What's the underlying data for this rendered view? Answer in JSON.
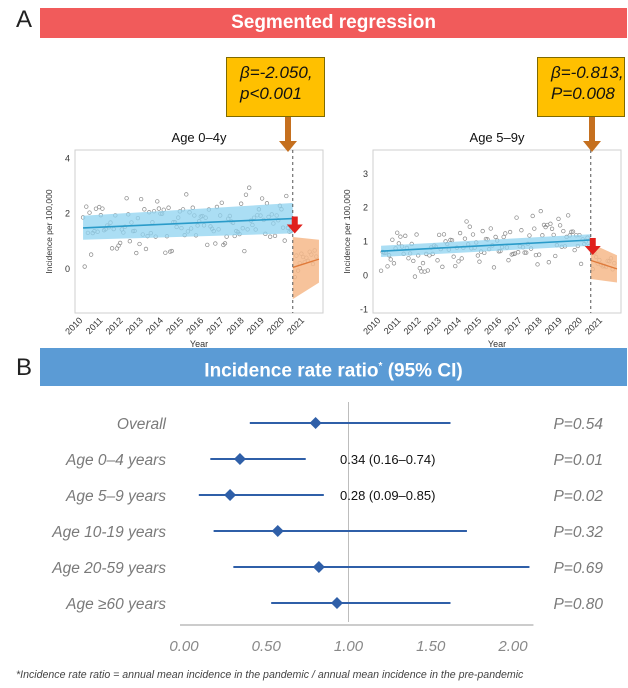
{
  "panel_a": {
    "letter": "A",
    "banner": "Segmented regression",
    "banner_color": "#f15b5b"
  },
  "panel_b": {
    "letter": "B",
    "banner_main": "Incidence rate ratio",
    "banner_sup": "*",
    "banner_tail": " (95% CI)",
    "banner_color": "#5b9bd5"
  },
  "callouts": [
    {
      "line1": "β=-2.050,",
      "line2": "p<0.001"
    },
    {
      "line1": "β=-0.813,",
      "line2": "P=0.008"
    }
  ],
  "footnote": "*Incidence rate ratio = annual mean incidence in the pandemic / annual mean incidence in the pre-pandemic",
  "colors": {
    "pre_band": "#8fd3f0",
    "pre_line": "#2a9bc9",
    "post_band": "#f6b98a",
    "post_line": "#e07a3a",
    "arrow_down": "#e0201c",
    "arrow_callout": "#c5701f",
    "forest": "#2f5fa8",
    "points": "#888888"
  },
  "chart_data": [
    {
      "type": "scatter",
      "title": "Age 0–4y",
      "xlabel": "Year",
      "ylabel": "Incidence per 100,000",
      "x_ticks": [
        "2010",
        "2011",
        "2012",
        "2013",
        "2014",
        "2015",
        "2016",
        "2017",
        "2018",
        "2019",
        "2020",
        "2021"
      ],
      "y_ticks": [
        "0",
        "2",
        "4"
      ],
      "xlim": [
        2009.6,
        2021.9
      ],
      "ylim": [
        -1.6,
        4.3
      ],
      "breakpoint": 2020.4,
      "pre_trend": {
        "x": [
          2010,
          2020.4
        ],
        "y": [
          1.48,
          1.82
        ],
        "lower": [
          1.05,
          1.28
        ],
        "upper": [
          1.92,
          2.38
        ]
      },
      "post_trend": {
        "x": [
          2020.4,
          2021.7
        ],
        "y": [
          0.05,
          0.35
        ],
        "lower": [
          -1.1,
          -0.5
        ],
        "upper": [
          1.15,
          1.05
        ]
      },
      "y_scale": 1
    },
    {
      "type": "scatter",
      "title": "Age 5–9y",
      "xlabel": "Year",
      "ylabel": "Incidence per 100,000",
      "x_ticks": [
        "2010",
        "2011",
        "2012",
        "2013",
        "2014",
        "2015",
        "2016",
        "2017",
        "2018",
        "2019",
        "2020",
        "2021"
      ],
      "y_ticks": [
        "-1",
        "0",
        "1",
        "2",
        "3"
      ],
      "xlim": [
        2009.6,
        2021.9
      ],
      "ylim": [
        -1.1,
        3.7
      ],
      "breakpoint": 2020.4,
      "pre_trend": {
        "x": [
          2010,
          2020.4
        ],
        "y": [
          0.72,
          1.05
        ],
        "lower": [
          0.55,
          0.88
        ],
        "upper": [
          0.88,
          1.22
        ]
      },
      "post_trend": {
        "x": [
          2020.4,
          2021.7
        ],
        "y": [
          0.45,
          0.2
        ],
        "lower": [
          -0.1,
          -0.2
        ],
        "upper": [
          0.95,
          0.6
        ]
      },
      "y_scale": 0.7
    },
    {
      "type": "forest",
      "x_ticks": [
        "0.00",
        "0.50",
        "1.00",
        "1.50",
        "2.00"
      ],
      "xlim": [
        0,
        2.1
      ],
      "reference_line": 1.0,
      "rows": [
        {
          "label": "Overall",
          "estimate": 0.8,
          "lower": 0.4,
          "upper": 1.62,
          "p": "P=0.54",
          "annotation": ""
        },
        {
          "label": "Age 0–4 years",
          "estimate": 0.34,
          "lower": 0.16,
          "upper": 0.74,
          "p": "P=0.01",
          "annotation": "0.34 (0.16–0.74)"
        },
        {
          "label": "Age 5–9 years",
          "estimate": 0.28,
          "lower": 0.09,
          "upper": 0.85,
          "p": "P=0.02",
          "annotation": "0.28 (0.09–0.85)"
        },
        {
          "label": "Age 10-19 years",
          "estimate": 0.57,
          "lower": 0.18,
          "upper": 1.72,
          "p": "P=0.32",
          "annotation": ""
        },
        {
          "label": "Age 20-59 years",
          "estimate": 0.82,
          "lower": 0.3,
          "upper": 2.1,
          "p": "P=0.69",
          "annotation": ""
        },
        {
          "label": "Age ≥60 years",
          "estimate": 0.93,
          "lower": 0.53,
          "upper": 1.62,
          "p": "P=0.80",
          "annotation": ""
        }
      ]
    }
  ]
}
